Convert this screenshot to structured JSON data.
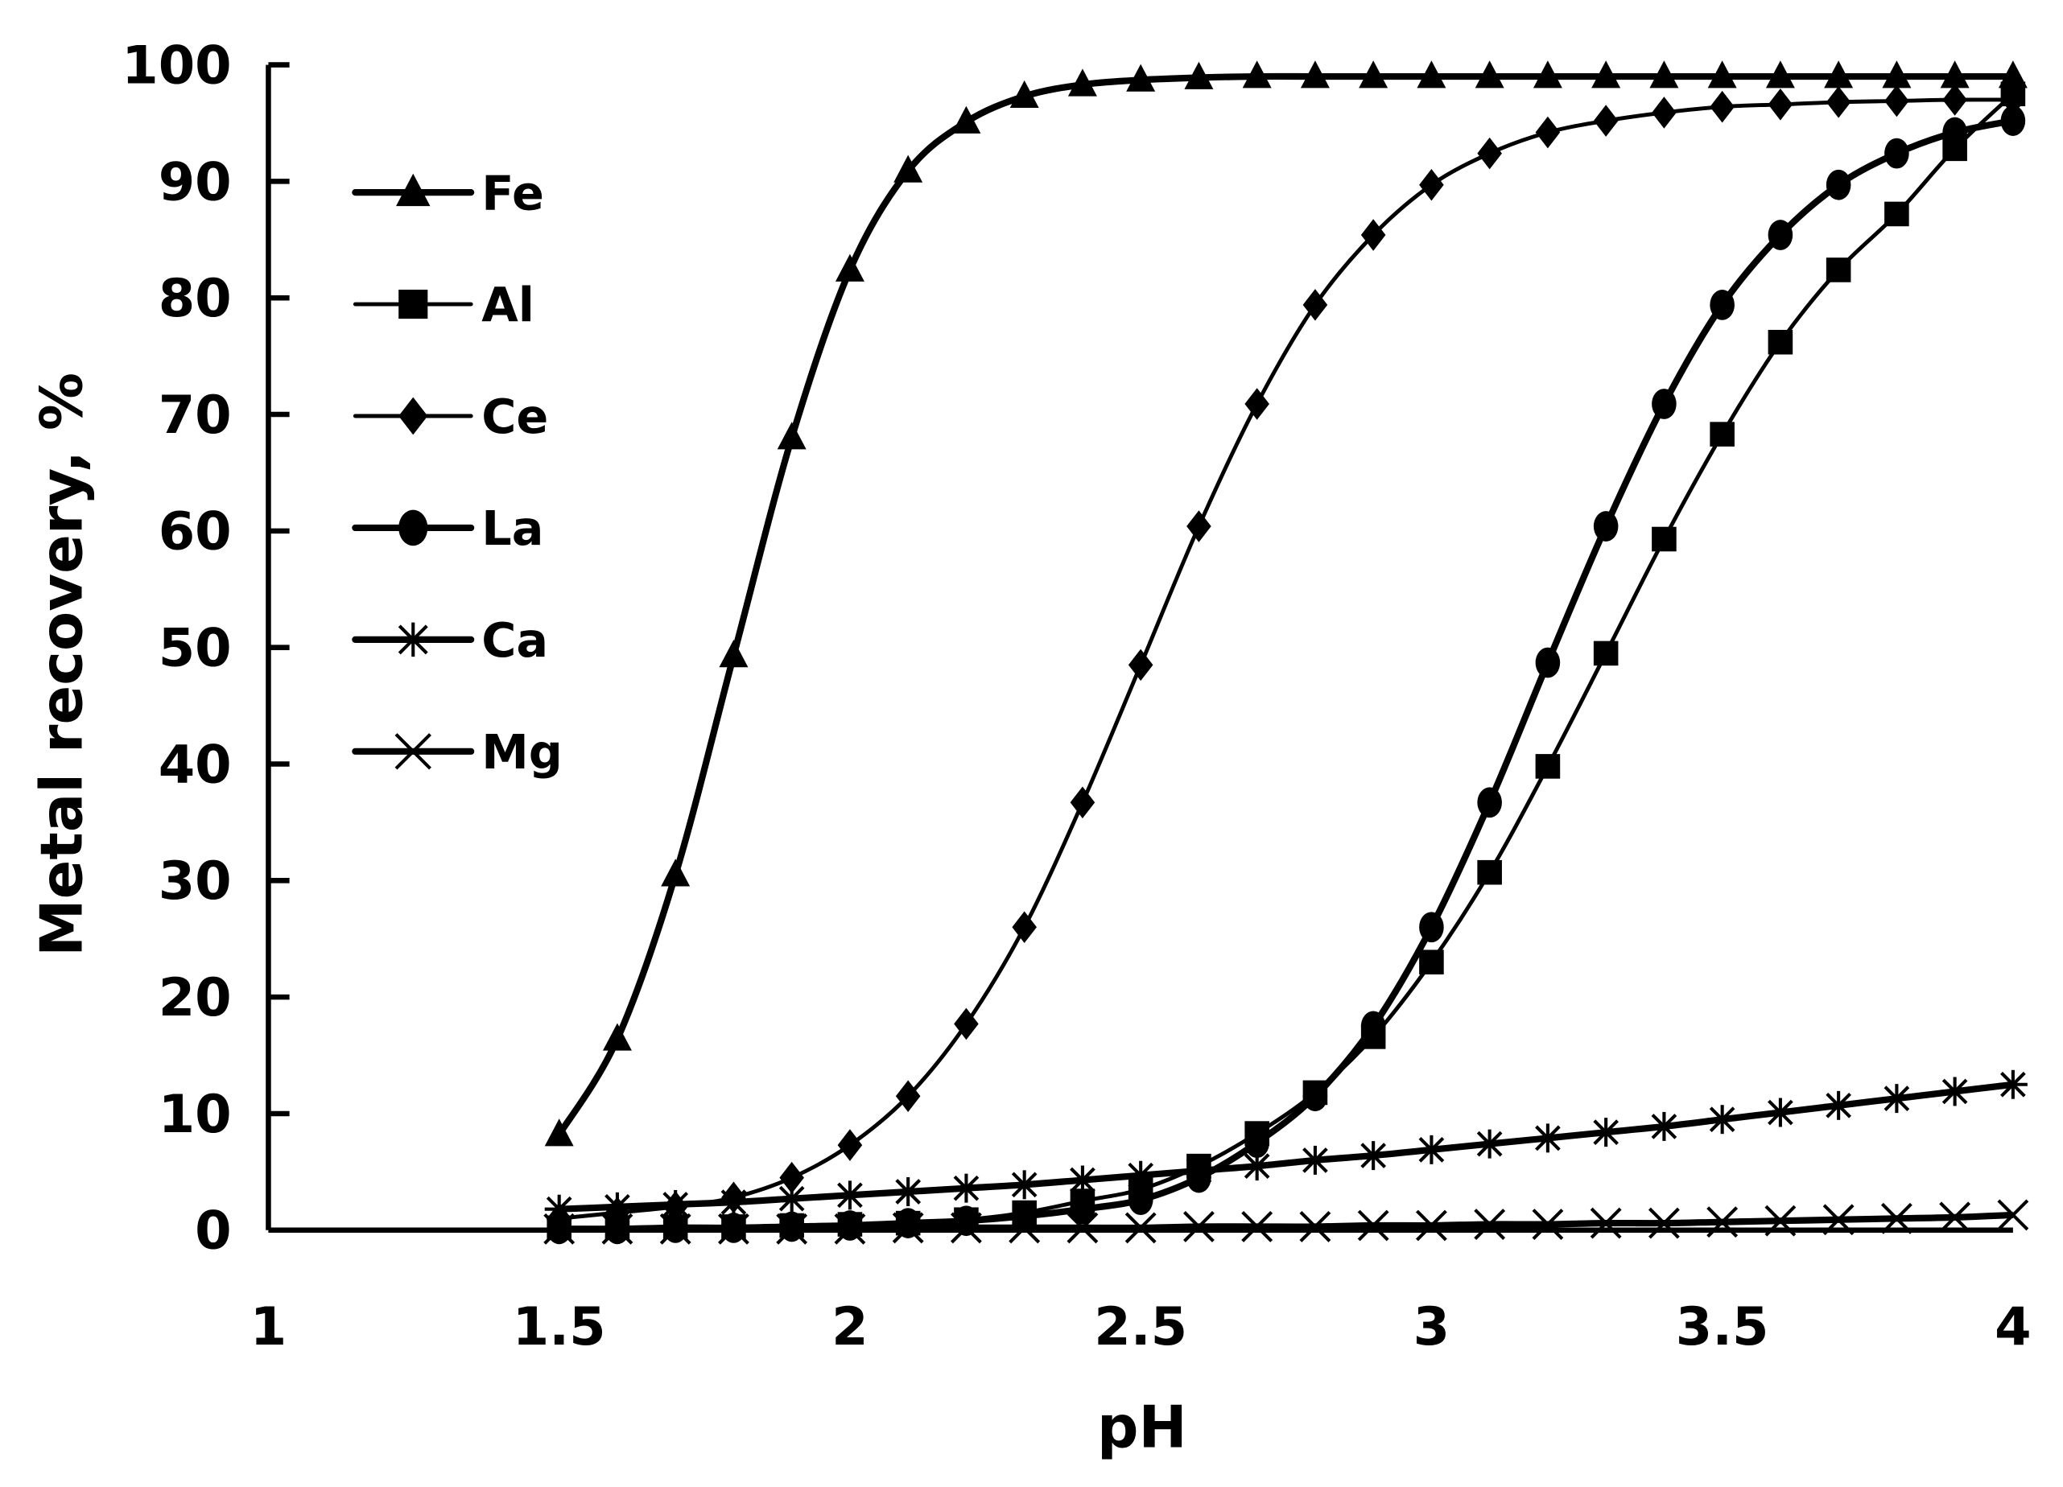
{
  "chart_data": {
    "type": "line",
    "title": "",
    "xlabel": "pH",
    "ylabel": "Metal recovery, %",
    "xlim": [
      1,
      4
    ],
    "ylim": [
      0,
      100
    ],
    "x_ticks": [
      "1",
      "1.5",
      "2",
      "2.5",
      "3",
      "3.5",
      "4"
    ],
    "y_ticks": [
      "0",
      "10",
      "20",
      "30",
      "40",
      "50",
      "60",
      "70",
      "80",
      "90",
      "100"
    ],
    "grid": false,
    "legend_position": "upper-left inside",
    "x": [
      1.5,
      1.6,
      1.7,
      1.8,
      1.9,
      2.0,
      2.1,
      2.2,
      2.3,
      2.4,
      2.5,
      2.6,
      2.7,
      2.8,
      2.9,
      3.0,
      3.1,
      3.2,
      3.3,
      3.4,
      3.5,
      3.6,
      3.7,
      3.8,
      3.9,
      4.0
    ],
    "series": [
      {
        "name": "Fe",
        "marker": "triangle",
        "values": [
          8.2,
          16.4,
          30.5,
          49.3,
          68.0,
          82.4,
          90.9,
          95.1,
          97.3,
          98.3,
          98.7,
          98.9,
          99.0,
          99.0,
          99.0,
          99.0,
          99.0,
          99.0,
          99.0,
          99.0,
          99.0,
          99.0,
          99.0,
          99.0,
          99.0,
          99.0
        ]
      },
      {
        "name": "Al",
        "marker": "square",
        "values": [
          0.2,
          0.2,
          0.3,
          0.3,
          0.4,
          0.5,
          0.6,
          0.9,
          1.5,
          2.5,
          3.5,
          5.5,
          8.3,
          11.8,
          16.6,
          23.0,
          30.7,
          39.8,
          49.5,
          59.3,
          68.3,
          76.2,
          82.4,
          87.2,
          92.8,
          97.5
        ]
      },
      {
        "name": "Ce",
        "marker": "diamond",
        "values": [
          1.0,
          1.5,
          2.0,
          2.8,
          4.5,
          7.3,
          11.5,
          17.7,
          26.0,
          36.7,
          48.5,
          60.4,
          70.9,
          79.4,
          85.4,
          89.7,
          92.4,
          94.2,
          95.2,
          95.9,
          96.4,
          96.6,
          96.8,
          96.9,
          97.0,
          97.0
        ]
      },
      {
        "name": "La",
        "marker": "circle",
        "values": [
          0.1,
          0.1,
          0.2,
          0.2,
          0.3,
          0.4,
          0.6,
          0.8,
          1.2,
          1.8,
          2.6,
          4.5,
          7.5,
          11.5,
          17.5,
          26.0,
          36.7,
          48.7,
          60.4,
          70.9,
          79.4,
          85.4,
          89.7,
          92.4,
          94.2,
          95.2
        ]
      },
      {
        "name": "Ca",
        "marker": "star",
        "values": [
          1.8,
          2.0,
          2.2,
          2.4,
          2.7,
          3.0,
          3.3,
          3.6,
          3.9,
          4.3,
          4.7,
          5.1,
          5.5,
          6.0,
          6.4,
          6.9,
          7.4,
          7.9,
          8.4,
          8.9,
          9.5,
          10.1,
          10.7,
          11.3,
          11.9,
          12.5
        ]
      },
      {
        "name": "Mg",
        "marker": "x",
        "values": [
          0.1,
          0.1,
          0.1,
          0.1,
          0.1,
          0.1,
          0.2,
          0.2,
          0.2,
          0.2,
          0.2,
          0.3,
          0.3,
          0.3,
          0.4,
          0.4,
          0.5,
          0.5,
          0.6,
          0.6,
          0.7,
          0.8,
          0.9,
          1.0,
          1.1,
          1.3
        ]
      }
    ]
  },
  "axes": {
    "xlabel": "pH",
    "ylabel": "Metal recovery, %"
  },
  "legend": {
    "items": [
      "Fe",
      "Al",
      "Ce",
      "La",
      "Ca",
      "Mg"
    ]
  }
}
